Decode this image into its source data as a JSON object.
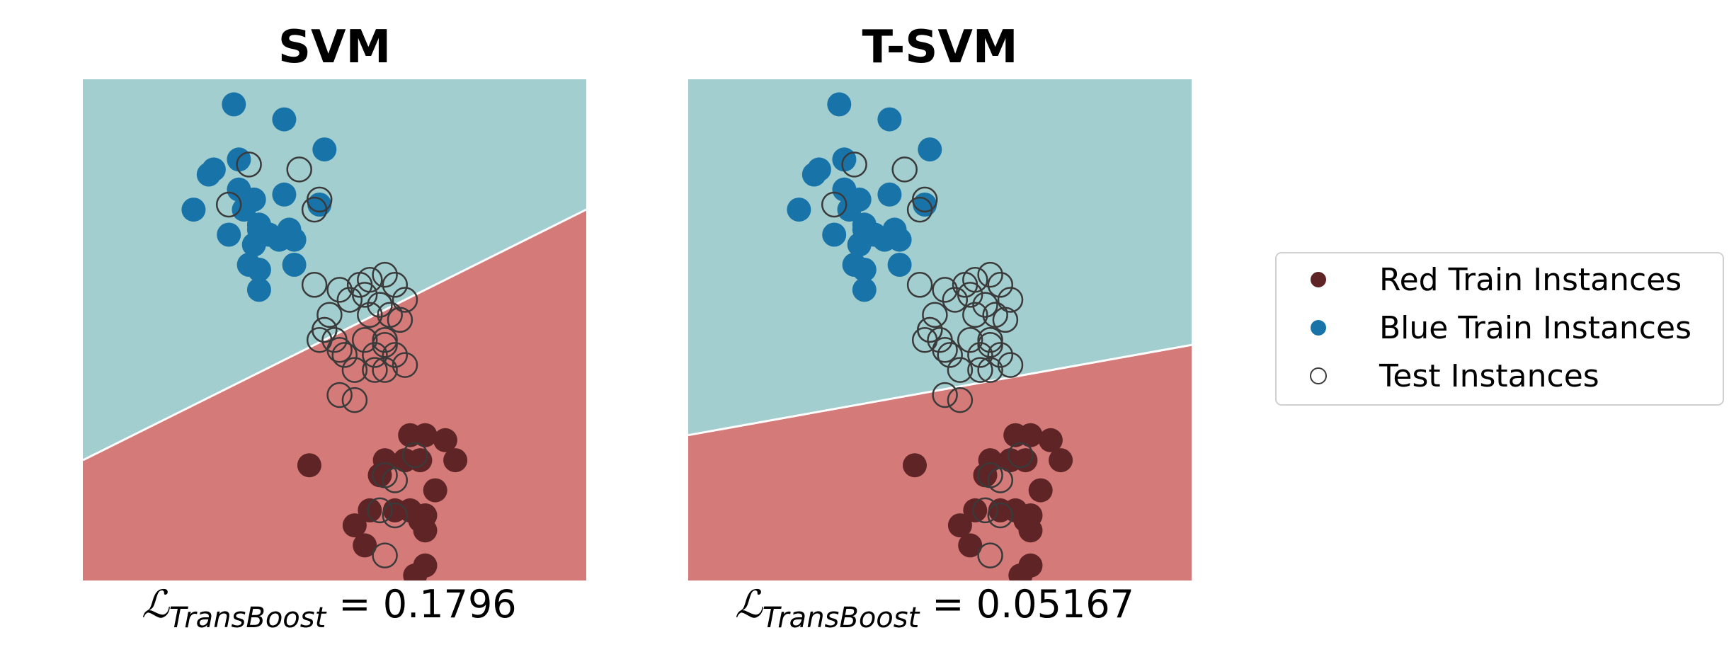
{
  "colors": {
    "blue_region": "#a3cecf",
    "red_region": "#d47a79",
    "blue_point": "#1874a8",
    "red_point": "#5e2426",
    "test_edge": "#3a3a3a",
    "boundary": "#ffffff"
  },
  "legend": {
    "items": [
      {
        "label": "Red Train Instances",
        "marker": "red-filled-circle"
      },
      {
        "label": "Blue Train Instances",
        "marker": "blue-filled-circle"
      },
      {
        "label": "Test Instances",
        "marker": "hollow-circle"
      }
    ]
  },
  "chart_data": [
    {
      "type": "scatter",
      "title": "SVM",
      "caption": {
        "symbol": "ℒ",
        "subscript": "TransBoost",
        "value": "= 0.1796"
      },
      "xlim": [
        0,
        10
      ],
      "ylim": [
        0,
        10
      ],
      "grid": false,
      "axes_visible": false,
      "decision_boundary": {
        "y_at_xmin": 2.4,
        "y_at_xmax": 7.4
      },
      "series": [
        {
          "name": "Red Train Instances",
          "points": [
            [
              6.5,
              2.9
            ],
            [
              6.8,
              2.9
            ],
            [
              7.2,
              2.8
            ],
            [
              7.4,
              2.4
            ],
            [
              6.4,
              2.4
            ],
            [
              6.0,
              2.4
            ],
            [
              6.7,
              2.4
            ],
            [
              5.9,
              2.1
            ],
            [
              7.0,
              1.8
            ],
            [
              6.2,
              1.4
            ],
            [
              6.5,
              1.4
            ],
            [
              6.8,
              1.3
            ],
            [
              6.7,
              1.2
            ],
            [
              5.7,
              1.4
            ],
            [
              6.8,
              1.0
            ],
            [
              5.4,
              1.1
            ],
            [
              5.6,
              0.7
            ],
            [
              6.8,
              0.3
            ],
            [
              6.6,
              0.1
            ],
            [
              4.5,
              2.3
            ]
          ]
        },
        {
          "name": "Blue Train Instances",
          "points": [
            [
              3.0,
              9.5
            ],
            [
              4.0,
              9.2
            ],
            [
              4.8,
              8.6
            ],
            [
              3.1,
              8.4
            ],
            [
              2.6,
              8.2
            ],
            [
              2.5,
              8.1
            ],
            [
              3.1,
              7.8
            ],
            [
              3.4,
              7.6
            ],
            [
              4.0,
              7.7
            ],
            [
              4.7,
              7.5
            ],
            [
              2.2,
              7.4
            ],
            [
              3.2,
              7.4
            ],
            [
              3.5,
              7.1
            ],
            [
              3.5,
              7.0
            ],
            [
              2.9,
              6.9
            ],
            [
              4.1,
              7.0
            ],
            [
              3.7,
              6.9
            ],
            [
              3.4,
              6.7
            ],
            [
              3.9,
              6.8
            ],
            [
              3.3,
              6.3
            ],
            [
              3.5,
              6.2
            ],
            [
              4.2,
              6.8
            ],
            [
              4.2,
              6.3
            ],
            [
              3.5,
              5.8
            ]
          ]
        },
        {
          "name": "Test Instances",
          "points": [
            [
              3.3,
              8.3
            ],
            [
              4.3,
              8.2
            ],
            [
              4.7,
              7.6
            ],
            [
              2.9,
              7.5
            ],
            [
              4.6,
              7.4
            ],
            [
              4.6,
              5.9
            ],
            [
              5.1,
              5.8
            ],
            [
              5.5,
              5.9
            ],
            [
              5.7,
              6.0
            ],
            [
              6.0,
              6.1
            ],
            [
              6.2,
              5.9
            ],
            [
              6.4,
              5.6
            ],
            [
              5.3,
              5.6
            ],
            [
              5.6,
              5.7
            ],
            [
              5.9,
              5.5
            ],
            [
              4.9,
              5.3
            ],
            [
              5.7,
              5.3
            ],
            [
              6.1,
              5.3
            ],
            [
              6.3,
              5.2
            ],
            [
              4.8,
              5.0
            ],
            [
              5.6,
              4.8
            ],
            [
              6.0,
              4.8
            ],
            [
              6.0,
              4.7
            ],
            [
              4.8,
              5.0
            ],
            [
              5.1,
              4.6
            ],
            [
              4.7,
              4.8
            ],
            [
              5.0,
              4.8
            ],
            [
              5.2,
              4.5
            ],
            [
              5.8,
              4.5
            ],
            [
              6.2,
              4.5
            ],
            [
              6.4,
              4.3
            ],
            [
              5.4,
              4.2
            ],
            [
              5.8,
              4.2
            ],
            [
              6.0,
              4.2
            ],
            [
              5.1,
              3.7
            ],
            [
              5.4,
              3.6
            ],
            [
              6.6,
              2.5
            ],
            [
              6.0,
              2.1
            ],
            [
              6.2,
              2.0
            ],
            [
              5.9,
              1.4
            ],
            [
              6.2,
              1.3
            ],
            [
              6.0,
              0.5
            ]
          ]
        }
      ]
    },
    {
      "type": "scatter",
      "title": "T-SVM",
      "caption": {
        "symbol": "ℒ",
        "subscript": "TransBoost",
        "value": "= 0.05167"
      },
      "xlim": [
        0,
        10
      ],
      "ylim": [
        0,
        10
      ],
      "grid": false,
      "axes_visible": false,
      "decision_boundary": {
        "y_at_xmin": 2.9,
        "y_at_xmax": 4.7
      },
      "series": [
        {
          "name": "Red Train Instances",
          "points": [
            [
              6.5,
              2.9
            ],
            [
              6.8,
              2.9
            ],
            [
              7.2,
              2.8
            ],
            [
              7.4,
              2.4
            ],
            [
              6.4,
              2.4
            ],
            [
              6.0,
              2.4
            ],
            [
              6.7,
              2.4
            ],
            [
              5.9,
              2.1
            ],
            [
              7.0,
              1.8
            ],
            [
              6.2,
              1.4
            ],
            [
              6.5,
              1.4
            ],
            [
              6.8,
              1.3
            ],
            [
              6.7,
              1.2
            ],
            [
              5.7,
              1.4
            ],
            [
              6.8,
              1.0
            ],
            [
              5.4,
              1.1
            ],
            [
              5.6,
              0.7
            ],
            [
              6.8,
              0.3
            ],
            [
              6.6,
              0.1
            ],
            [
              4.5,
              2.3
            ]
          ]
        },
        {
          "name": "Blue Train Instances",
          "points": [
            [
              3.0,
              9.5
            ],
            [
              4.0,
              9.2
            ],
            [
              4.8,
              8.6
            ],
            [
              3.1,
              8.4
            ],
            [
              2.6,
              8.2
            ],
            [
              2.5,
              8.1
            ],
            [
              3.1,
              7.8
            ],
            [
              3.4,
              7.6
            ],
            [
              4.0,
              7.7
            ],
            [
              4.7,
              7.5
            ],
            [
              2.2,
              7.4
            ],
            [
              3.2,
              7.4
            ],
            [
              3.5,
              7.1
            ],
            [
              3.5,
              7.0
            ],
            [
              2.9,
              6.9
            ],
            [
              4.1,
              7.0
            ],
            [
              3.7,
              6.9
            ],
            [
              3.4,
              6.7
            ],
            [
              3.9,
              6.8
            ],
            [
              3.3,
              6.3
            ],
            [
              3.5,
              6.2
            ],
            [
              4.2,
              6.8
            ],
            [
              4.2,
              6.3
            ],
            [
              3.5,
              5.8
            ]
          ]
        },
        {
          "name": "Test Instances",
          "points": [
            [
              3.3,
              8.3
            ],
            [
              4.3,
              8.2
            ],
            [
              4.7,
              7.6
            ],
            [
              2.9,
              7.5
            ],
            [
              4.6,
              7.4
            ],
            [
              4.6,
              5.9
            ],
            [
              5.1,
              5.8
            ],
            [
              5.5,
              5.9
            ],
            [
              5.7,
              6.0
            ],
            [
              6.0,
              6.1
            ],
            [
              6.2,
              5.9
            ],
            [
              6.4,
              5.6
            ],
            [
              5.3,
              5.6
            ],
            [
              5.6,
              5.7
            ],
            [
              5.9,
              5.5
            ],
            [
              4.9,
              5.3
            ],
            [
              5.7,
              5.3
            ],
            [
              6.1,
              5.3
            ],
            [
              6.3,
              5.2
            ],
            [
              4.8,
              5.0
            ],
            [
              5.6,
              4.8
            ],
            [
              6.0,
              4.8
            ],
            [
              6.0,
              4.7
            ],
            [
              4.8,
              5.0
            ],
            [
              5.1,
              4.6
            ],
            [
              4.7,
              4.8
            ],
            [
              5.0,
              4.8
            ],
            [
              5.2,
              4.5
            ],
            [
              5.8,
              4.5
            ],
            [
              6.2,
              4.5
            ],
            [
              6.4,
              4.3
            ],
            [
              5.4,
              4.2
            ],
            [
              5.8,
              4.2
            ],
            [
              6.0,
              4.2
            ],
            [
              5.1,
              3.7
            ],
            [
              5.4,
              3.6
            ],
            [
              6.6,
              2.5
            ],
            [
              6.0,
              2.1
            ],
            [
              6.2,
              2.0
            ],
            [
              5.9,
              1.4
            ],
            [
              6.2,
              1.3
            ],
            [
              6.0,
              0.5
            ]
          ]
        }
      ]
    }
  ]
}
